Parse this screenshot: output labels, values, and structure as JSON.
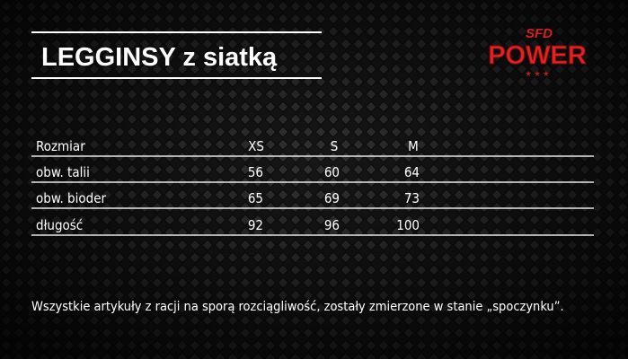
{
  "header": {
    "title": "LEGGINSY z siatką",
    "logo": {
      "top": "SFD",
      "main": "POWER"
    }
  },
  "table": {
    "header": [
      "Rozmiar",
      "XS",
      "S",
      "M"
    ],
    "rows": [
      [
        "obw. talii",
        56,
        60,
        64
      ],
      [
        "obw. bioder",
        65,
        69,
        73
      ],
      [
        "długość",
        92,
        96,
        100
      ]
    ]
  },
  "note": "Wszystkie artykuły z racji na sporą rozciągliwość, zostały zmierzone w stanie „spoczynku”."
}
